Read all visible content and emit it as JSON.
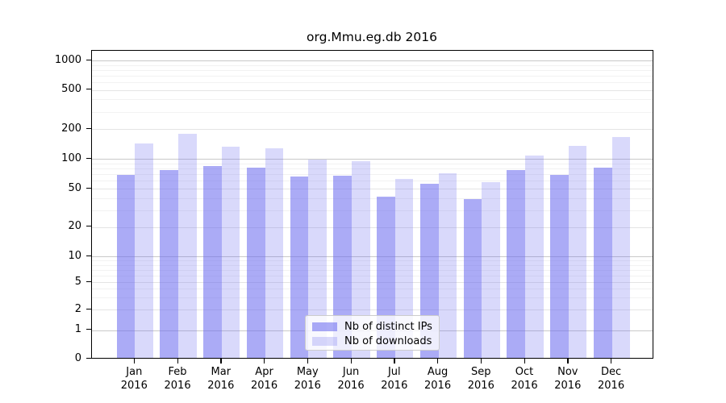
{
  "title": "org.Mmu.eg.db 2016",
  "chart_data": {
    "type": "bar",
    "title": "org.Mmu.eg.db 2016",
    "xlabel": "",
    "ylabel": "",
    "yscale": "log (custom ticks, 0 baseline)",
    "grid": true,
    "legend_position": "lower center",
    "categories": [
      "Jan",
      "Feb",
      "Mar",
      "Apr",
      "May",
      "Jun",
      "Jul",
      "Aug",
      "Sep",
      "Oct",
      "Nov",
      "Dec"
    ],
    "category_year": "2016",
    "yticks": [
      0,
      1,
      2,
      5,
      10,
      20,
      50,
      100,
      200,
      500,
      1000
    ],
    "ytick_labels": [
      "0",
      "1",
      "2",
      "5",
      "10",
      "20",
      "50",
      "100",
      "200",
      "500",
      "1000"
    ],
    "ylim": [
      0,
      1300
    ],
    "series": [
      {
        "name": "Nb of distinct IPs",
        "color": "#6666ee",
        "alpha": 0.55,
        "values": [
          67,
          75,
          83,
          80,
          65,
          66,
          40,
          55,
          38,
          75,
          67,
          80
        ]
      },
      {
        "name": "Nb of downloads",
        "color": "#6666ee",
        "alpha": 0.25,
        "values": [
          140,
          175,
          130,
          124,
          96,
          92,
          61,
          70,
          57,
          104,
          132,
          160
        ]
      }
    ]
  },
  "colors": {
    "axis": "#000000",
    "grid_major": "#c9c9c9",
    "grid_mid": "#e4e4e4",
    "grid_minor": "#f2f2f2",
    "background": "#ffffff"
  }
}
